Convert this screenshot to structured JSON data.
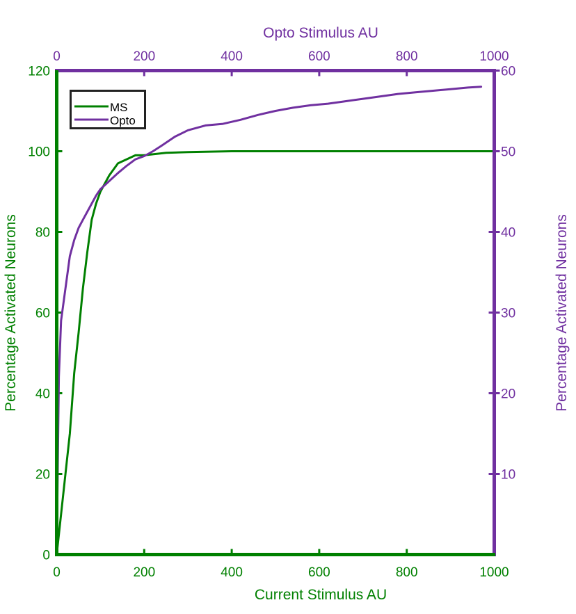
{
  "chart_data": {
    "type": "line",
    "bottom_axis": {
      "label": "Current Stimulus AU",
      "range": [
        0,
        1000
      ],
      "ticks": [
        0,
        200,
        400,
        600,
        800,
        1000
      ]
    },
    "top_axis": {
      "label": "Opto Stimulus AU",
      "range": [
        0,
        1000
      ],
      "ticks": [
        0,
        200,
        400,
        600,
        800,
        1000
      ]
    },
    "left_axis": {
      "label": "Percentage Activated Neurons",
      "range": [
        0,
        120
      ],
      "ticks": [
        0,
        20,
        40,
        60,
        80,
        100,
        120
      ]
    },
    "right_axis": {
      "label": "Percentage Activated Neurons",
      "range": [
        0,
        60
      ],
      "ticks": [
        10,
        20,
        30,
        40,
        50,
        60
      ]
    },
    "legend": {
      "placement": "top-left",
      "entries": [
        "MS",
        "Opto"
      ]
    },
    "grid": false,
    "series": [
      {
        "name": "MS",
        "color": "#008000",
        "x_axis": "bottom",
        "y_axis": "left",
        "x": [
          0,
          10,
          20,
          30,
          40,
          50,
          60,
          70,
          80,
          90,
          100,
          120,
          140,
          160,
          180,
          200,
          250,
          300,
          350,
          400,
          600,
          800,
          1000
        ],
        "y": [
          0,
          10,
          20,
          30,
          45,
          55,
          66,
          75,
          83,
          87,
          90,
          94,
          97,
          98,
          99,
          99,
          99.6,
          99.8,
          99.9,
          100,
          100,
          100,
          100
        ]
      },
      {
        "name": "Opto",
        "color": "#7030a0",
        "x_axis": "top",
        "y_axis": "right",
        "x": [
          0,
          5,
          10,
          20,
          30,
          40,
          50,
          60,
          70,
          80,
          90,
          100,
          120,
          140,
          160,
          180,
          200,
          220,
          240,
          270,
          300,
          340,
          380,
          420,
          460,
          500,
          540,
          580,
          620,
          660,
          700,
          740,
          780,
          820,
          860,
          900,
          940,
          970
        ],
        "y": [
          0,
          22,
          29,
          33,
          37,
          39,
          40.5,
          41.5,
          42.5,
          43.5,
          44.5,
          45.3,
          46.3,
          47.3,
          48.2,
          49,
          49.4,
          50,
          50.7,
          51.8,
          52.6,
          53.2,
          53.4,
          53.9,
          54.5,
          55,
          55.4,
          55.7,
          55.9,
          56.2,
          56.5,
          56.8,
          57.1,
          57.3,
          57.5,
          57.7,
          57.9,
          58
        ]
      }
    ]
  }
}
